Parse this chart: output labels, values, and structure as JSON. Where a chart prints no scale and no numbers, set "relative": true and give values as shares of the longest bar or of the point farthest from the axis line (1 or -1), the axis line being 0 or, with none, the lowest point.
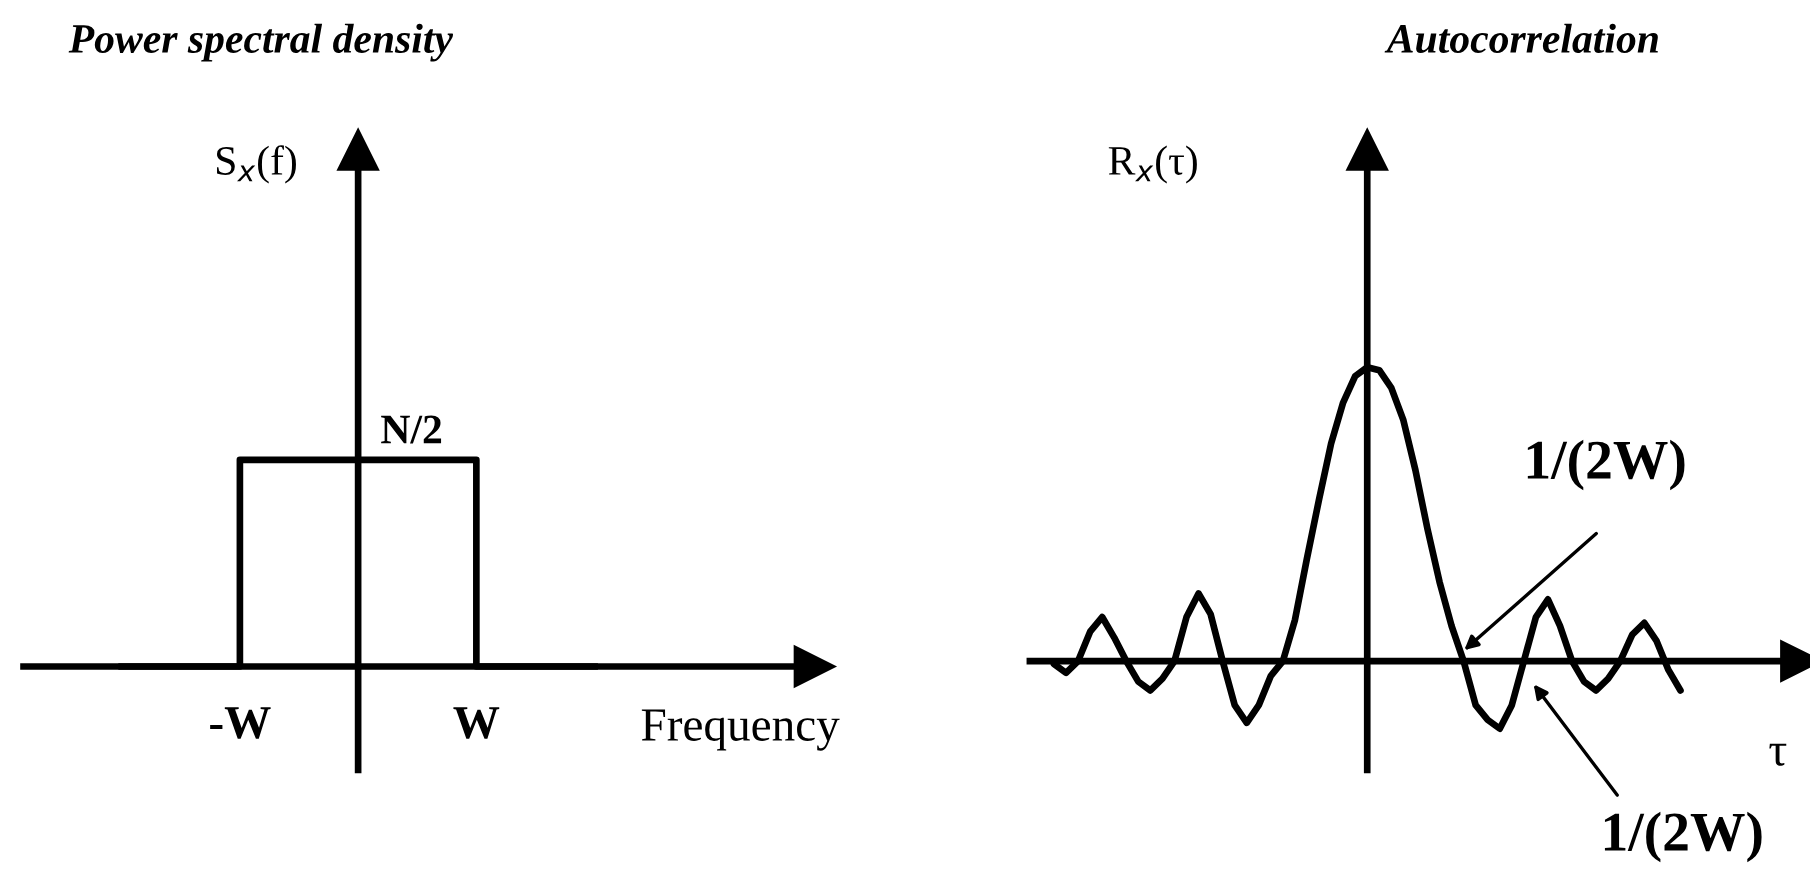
{
  "chart_data": [
    {
      "type": "line",
      "title": "Power spectral density",
      "ylabel": "S$_{x}$(f)",
      "xlabel": "Frequency",
      "relative": true,
      "categories": [
        null,
        "-W",
        null,
        "W",
        null
      ],
      "series": [
        {
          "type": "step",
          "color": "#000000",
          "values": [
            0,
            1,
            1,
            0,
            0
          ]
        }
      ],
      "annotations": [
        {
          "text": "N/2",
          "y": 1
        }
      ]
    },
    {
      "type": "line",
      "title": "Autocorrelation",
      "ylabel": "R$_{x}$(τ)",
      "xlabel": "τ",
      "relative": true,
      "categories": [
        null,
        null,
        null,
        null,
        null,
        null,
        null,
        null,
        null,
        null,
        null,
        null,
        null,
        null,
        null,
        null,
        null,
        null,
        null,
        null,
        null,
        null,
        null,
        null,
        null,
        null,
        null,
        null,
        null,
        null,
        null,
        null,
        null,
        null,
        null,
        null,
        null,
        null,
        null,
        null,
        null,
        null,
        null,
        null,
        null,
        null,
        null,
        null,
        null,
        null,
        null,
        null,
        null
      ],
      "series": [
        {
          "color": "#000000",
          "values": [
            -0.01,
            -0.04,
            0,
            0.1,
            0.15,
            0.08,
            0,
            -0.07,
            -0.1,
            -0.06,
            0,
            0.15,
            0.23,
            0.16,
            0,
            -0.15,
            -0.21,
            -0.15,
            -0.05,
            0,
            0.14,
            0.35,
            0.55,
            0.74,
            0.88,
            0.97,
            1.0,
            0.99,
            0.93,
            0.82,
            0.65,
            0.45,
            0.27,
            0.12,
            0,
            -0.15,
            -0.2,
            -0.23,
            -0.15,
            0,
            0.15,
            0.21,
            0.12,
            0,
            -0.07,
            -0.1,
            -0.06,
            0,
            0.09,
            0.13,
            0.07,
            -0.03,
            -0.1
          ]
        }
      ],
      "annotations": [
        "1/(2W)",
        "1/(2W)"
      ]
    }
  ]
}
